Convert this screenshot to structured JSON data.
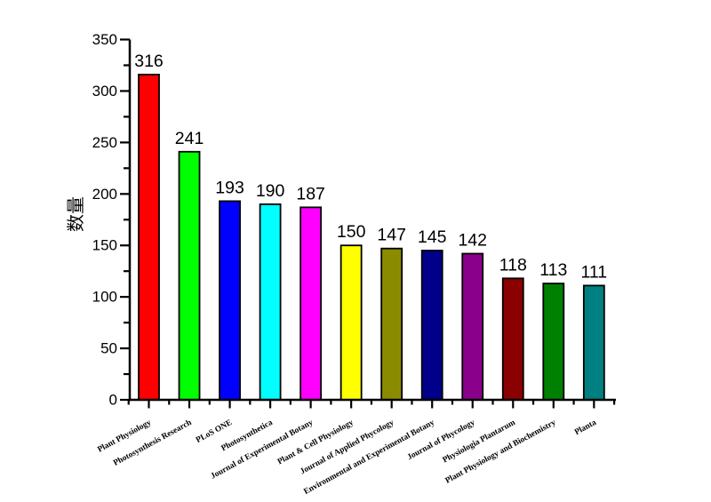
{
  "chart_data": {
    "type": "bar",
    "title": "",
    "xlabel": "",
    "ylabel": "数量",
    "categories": [
      "Plant Physiology",
      "Photosynthesis Research",
      "PLoS ONE",
      "Photosynthetica",
      "Journal of Experimental Botany",
      "Plant & Cell Physiology",
      "Journal of Applied Phycology",
      "Environmental and Experimental Botany",
      "Journal of Phycology",
      "Physiologia Plantarum",
      "Plant Physiology and Biochemistry",
      "Planta"
    ],
    "values": [
      316,
      241,
      193,
      190,
      187,
      150,
      147,
      145,
      142,
      118,
      113,
      111
    ],
    "bar_colors": [
      "#FF0000",
      "#00FF00",
      "#0000FF",
      "#00FFFF",
      "#FF00FF",
      "#FFFF00",
      "#8B8B00",
      "#00008B",
      "#8B008B",
      "#8B0000",
      "#008000",
      "#008080"
    ],
    "ylim": [
      0,
      350
    ],
    "ytick_major": 50,
    "ytick_minor": 25,
    "grid": false,
    "legend": false,
    "value_labels_shown": true,
    "axis_color": "#000000"
  }
}
